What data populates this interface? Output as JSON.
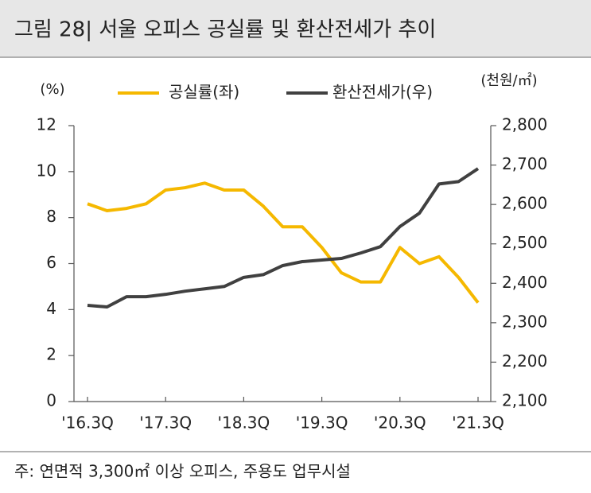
{
  "chart_data": {
    "type": "line",
    "title": "그림 28| 서울 오피스 공실률 및 환산전세가 추이",
    "y_label": "(%)",
    "y2_label": "(천원/㎡)",
    "note": "주: 연면적 3,300㎡ 이상 오피스, 주용도 업무시설",
    "categories": [
      "'16.3Q",
      null,
      null,
      null,
      "'17.3Q",
      null,
      null,
      null,
      "'18.3Q",
      null,
      null,
      null,
      "'19.3Q",
      null,
      null,
      null,
      "'20.3Q",
      null,
      null,
      null,
      "'21.3Q"
    ],
    "series": [
      {
        "name": "공실률(좌)",
        "color": "#f5b800",
        "axis": "y",
        "values": [
          8.6,
          8.3,
          8.4,
          8.6,
          9.2,
          9.3,
          9.5,
          9.2,
          9.2,
          8.5,
          7.6,
          7.6,
          6.7,
          5.6,
          5.2,
          5.2,
          6.7,
          6.0,
          6.3,
          5.4,
          4.3
        ]
      },
      {
        "name": "환산전세가(우)",
        "color": "#404040",
        "axis": "y2",
        "values": [
          2344,
          2340,
          2366,
          2366,
          2372,
          2380,
          2386,
          2392,
          2415,
          2422,
          2445,
          2455,
          2459,
          2463,
          2477,
          2493,
          2544,
          2578,
          2652,
          2658,
          2691
        ]
      }
    ],
    "ylim": [
      0,
      12
    ],
    "yticks": [
      0,
      2,
      4,
      6,
      8,
      10,
      12
    ],
    "y2lim": [
      2100,
      2800
    ],
    "y2ticks": [
      {
        "value": 2100,
        "label": "2,100"
      },
      {
        "value": 2200,
        "label": "2,200"
      },
      {
        "value": 2300,
        "label": "2,300"
      },
      {
        "value": 2400,
        "label": "2,400"
      },
      {
        "value": 2500,
        "label": "2,500"
      },
      {
        "value": 2600,
        "label": "2,600"
      },
      {
        "value": 2700,
        "label": "2,700"
      },
      {
        "value": 2800,
        "label": "2,800"
      }
    ],
    "grid": false
  }
}
